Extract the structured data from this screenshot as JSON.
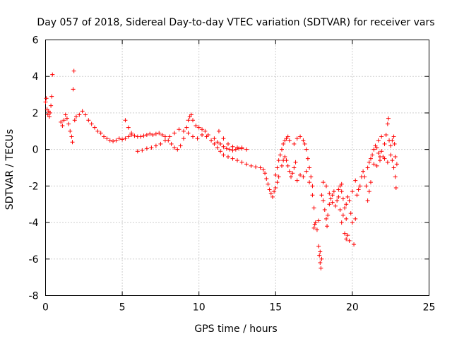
{
  "chart_data": {
    "type": "scatter",
    "title": "Day 057 of 2018, Sidereal Day-to-day VTEC variation (SDTVAR) for receiver vars",
    "xlabel": "GPS time / hours",
    "ylabel": "SDTVAR / TECUs",
    "xlim": [
      0,
      25
    ],
    "ylim": [
      -8,
      6
    ],
    "x_ticks": [
      0,
      5,
      10,
      15,
      20,
      25
    ],
    "y_ticks": [
      -8,
      -6,
      -4,
      -2,
      0,
      2,
      4,
      6
    ],
    "grid": true,
    "legend": "none",
    "marker": "+",
    "series": [
      {
        "name": "SDTVAR",
        "color": "#ff0000",
        "points": [
          [
            0.0,
            2.6
          ],
          [
            0.05,
            2.8
          ],
          [
            0.1,
            2.2
          ],
          [
            0.15,
            1.9
          ],
          [
            0.2,
            2.1
          ],
          [
            0.25,
            1.8
          ],
          [
            0.3,
            2.0
          ],
          [
            0.35,
            2.4
          ],
          [
            0.4,
            2.9
          ],
          [
            0.45,
            4.1
          ],
          [
            1.0,
            1.5
          ],
          [
            1.1,
            1.3
          ],
          [
            1.2,
            1.6
          ],
          [
            1.3,
            1.9
          ],
          [
            1.4,
            1.7
          ],
          [
            1.5,
            1.4
          ],
          [
            1.6,
            1.0
          ],
          [
            1.7,
            0.7
          ],
          [
            1.75,
            0.4
          ],
          [
            1.8,
            3.3
          ],
          [
            1.85,
            4.3
          ],
          [
            1.9,
            1.6
          ],
          [
            2.0,
            1.8
          ],
          [
            2.2,
            1.9
          ],
          [
            2.4,
            2.1
          ],
          [
            2.6,
            1.9
          ],
          [
            2.8,
            1.6
          ],
          [
            3.0,
            1.4
          ],
          [
            3.2,
            1.2
          ],
          [
            3.4,
            1.0
          ],
          [
            3.6,
            0.9
          ],
          [
            3.8,
            0.7
          ],
          [
            4.0,
            0.6
          ],
          [
            4.2,
            0.5
          ],
          [
            4.4,
            0.45
          ],
          [
            4.6,
            0.5
          ],
          [
            4.8,
            0.6
          ],
          [
            5.0,
            0.55
          ],
          [
            5.2,
            0.6
          ],
          [
            5.4,
            0.7
          ],
          [
            5.6,
            0.8
          ],
          [
            5.2,
            1.6
          ],
          [
            5.4,
            1.2
          ],
          [
            5.6,
            0.9
          ],
          [
            5.8,
            0.75
          ],
          [
            6.0,
            0.7
          ],
          [
            6.2,
            0.7
          ],
          [
            6.4,
            0.75
          ],
          [
            6.6,
            0.8
          ],
          [
            6.8,
            0.85
          ],
          [
            7.0,
            0.8
          ],
          [
            6.0,
            -0.1
          ],
          [
            6.3,
            -0.05
          ],
          [
            6.6,
            0.05
          ],
          [
            6.9,
            0.1
          ],
          [
            7.2,
            0.2
          ],
          [
            7.5,
            0.3
          ],
          [
            7.8,
            0.5
          ],
          [
            8.1,
            0.7
          ],
          [
            8.4,
            0.9
          ],
          [
            8.7,
            1.1
          ],
          [
            7.2,
            0.85
          ],
          [
            7.4,
            0.9
          ],
          [
            7.6,
            0.8
          ],
          [
            7.8,
            0.7
          ],
          [
            8.0,
            0.5
          ],
          [
            8.2,
            0.3
          ],
          [
            8.4,
            0.1
          ],
          [
            8.6,
            0.0
          ],
          [
            8.8,
            0.2
          ],
          [
            9.0,
            0.6
          ],
          [
            9.2,
            1.2
          ],
          [
            9.3,
            1.6
          ],
          [
            9.4,
            1.8
          ],
          [
            9.5,
            1.9
          ],
          [
            9.6,
            1.6
          ],
          [
            9.8,
            1.3
          ],
          [
            10.0,
            1.2
          ],
          [
            10.2,
            1.1
          ],
          [
            10.4,
            1.0
          ],
          [
            10.6,
            0.8
          ],
          [
            9.0,
            1.0
          ],
          [
            9.3,
            0.9
          ],
          [
            9.6,
            0.7
          ],
          [
            9.9,
            0.6
          ],
          [
            10.2,
            0.8
          ],
          [
            10.5,
            0.7
          ],
          [
            10.8,
            0.5
          ],
          [
            11.0,
            0.3
          ],
          [
            11.2,
            0.1
          ],
          [
            11.4,
            -0.1
          ],
          [
            11.0,
            0.6
          ],
          [
            11.2,
            0.4
          ],
          [
            11.4,
            0.3
          ],
          [
            11.6,
            0.15
          ],
          [
            11.8,
            0.05
          ],
          [
            12.0,
            0.0
          ],
          [
            12.2,
            -0.05
          ],
          [
            12.4,
            0.0
          ],
          [
            12.6,
            0.05
          ],
          [
            12.8,
            0.1
          ],
          [
            11.3,
            1.0
          ],
          [
            11.6,
            0.6
          ],
          [
            11.9,
            0.3
          ],
          [
            12.2,
            0.15
          ],
          [
            12.5,
            0.1
          ],
          [
            12.8,
            0.05
          ],
          [
            13.1,
            0.0
          ],
          [
            11.6,
            -0.3
          ],
          [
            11.9,
            -0.4
          ],
          [
            12.2,
            -0.5
          ],
          [
            12.5,
            -0.6
          ],
          [
            12.8,
            -0.7
          ],
          [
            13.1,
            -0.8
          ],
          [
            13.4,
            -0.9
          ],
          [
            13.7,
            -0.95
          ],
          [
            14.0,
            -1.0
          ],
          [
            14.2,
            -1.1
          ],
          [
            14.3,
            -1.3
          ],
          [
            14.4,
            -1.6
          ],
          [
            14.5,
            -1.9
          ],
          [
            14.6,
            -2.2
          ],
          [
            14.7,
            -2.4
          ],
          [
            14.8,
            -2.6
          ],
          [
            14.9,
            -2.3
          ],
          [
            15.0,
            -2.1
          ],
          [
            15.1,
            -1.8
          ],
          [
            15.2,
            -1.5
          ],
          [
            15.0,
            -1.4
          ],
          [
            15.1,
            -1.0
          ],
          [
            15.2,
            -0.6
          ],
          [
            15.3,
            -0.3
          ],
          [
            15.4,
            0.0
          ],
          [
            15.5,
            0.3
          ],
          [
            15.6,
            0.5
          ],
          [
            15.7,
            0.6
          ],
          [
            15.8,
            0.7
          ],
          [
            15.9,
            0.5
          ],
          [
            15.4,
            -0.9
          ],
          [
            15.5,
            -0.6
          ],
          [
            15.6,
            -0.4
          ],
          [
            15.7,
            -0.6
          ],
          [
            15.8,
            -0.9
          ],
          [
            15.9,
            -1.2
          ],
          [
            16.0,
            -1.5
          ],
          [
            16.1,
            -1.3
          ],
          [
            16.2,
            -1.0
          ],
          [
            16.3,
            -0.7
          ],
          [
            16.2,
            0.3
          ],
          [
            16.4,
            0.6
          ],
          [
            16.6,
            0.7
          ],
          [
            16.8,
            0.5
          ],
          [
            16.9,
            0.3
          ],
          [
            17.0,
            0.0
          ],
          [
            17.1,
            -0.5
          ],
          [
            17.2,
            -1.0
          ],
          [
            17.3,
            -1.5
          ],
          [
            17.4,
            -2.0
          ],
          [
            16.4,
            -1.7
          ],
          [
            16.6,
            -1.4
          ],
          [
            16.8,
            -1.5
          ],
          [
            17.0,
            -1.2
          ],
          [
            17.2,
            -1.8
          ],
          [
            17.4,
            -2.5
          ],
          [
            17.5,
            -3.2
          ],
          [
            17.6,
            -4.0
          ],
          [
            17.7,
            -4.4
          ],
          [
            17.8,
            -3.9
          ],
          [
            17.5,
            -4.3
          ],
          [
            17.55,
            -4.1
          ],
          [
            17.8,
            -5.3
          ],
          [
            17.85,
            -5.8
          ],
          [
            17.9,
            -6.2
          ],
          [
            17.95,
            -6.5
          ],
          [
            18.0,
            -6.0
          ],
          [
            17.9,
            -5.6
          ],
          [
            18.0,
            -2.5
          ],
          [
            18.1,
            -2.8
          ],
          [
            18.2,
            -3.3
          ],
          [
            18.3,
            -3.8
          ],
          [
            18.35,
            -4.2
          ],
          [
            18.4,
            -3.6
          ],
          [
            18.5,
            -3.0
          ],
          [
            18.6,
            -2.7
          ],
          [
            18.7,
            -2.5
          ],
          [
            18.8,
            -2.3
          ],
          [
            18.1,
            -1.8
          ],
          [
            18.3,
            -2.0
          ],
          [
            18.5,
            -2.4
          ],
          [
            18.7,
            -2.9
          ],
          [
            18.9,
            -3.1
          ],
          [
            19.0,
            -2.8
          ],
          [
            19.1,
            -2.2
          ],
          [
            19.2,
            -2.0
          ],
          [
            19.3,
            -2.3
          ],
          [
            19.4,
            -2.7
          ],
          [
            19.5,
            -3.2
          ],
          [
            19.6,
            -3.0
          ],
          [
            19.7,
            -2.6
          ],
          [
            19.8,
            -2.8
          ],
          [
            19.9,
            -3.5
          ],
          [
            20.0,
            -4.0
          ],
          [
            19.7,
            -4.7
          ],
          [
            19.8,
            -5.0
          ],
          [
            20.1,
            -5.2
          ],
          [
            20.2,
            -3.8
          ],
          [
            20.3,
            -2.5
          ],
          [
            20.4,
            -2.2
          ],
          [
            20.5,
            -2.0
          ],
          [
            20.6,
            -1.5
          ],
          [
            20.7,
            -1.2
          ],
          [
            20.8,
            -1.5
          ],
          [
            20.9,
            -2.0
          ],
          [
            21.0,
            -2.8
          ],
          [
            21.1,
            -2.3
          ],
          [
            21.2,
            -1.8
          ],
          [
            19.2,
            -3.3
          ],
          [
            19.4,
            -3.6
          ],
          [
            19.6,
            -3.8
          ],
          [
            19.3,
            -4.0
          ],
          [
            19.5,
            -4.6
          ],
          [
            19.6,
            -4.9
          ],
          [
            19.1,
            -2.6
          ],
          [
            19.3,
            -1.9
          ],
          [
            20.0,
            -2.3
          ],
          [
            20.2,
            -1.7
          ],
          [
            21.0,
            -1.0
          ],
          [
            21.1,
            -0.7
          ],
          [
            21.2,
            -0.5
          ],
          [
            21.3,
            -0.3
          ],
          [
            21.4,
            0.0
          ],
          [
            21.5,
            0.2
          ],
          [
            21.6,
            0.1
          ],
          [
            21.7,
            -0.2
          ],
          [
            21.8,
            -0.4
          ],
          [
            21.9,
            -0.1
          ],
          [
            21.4,
            -0.8
          ],
          [
            21.6,
            -0.9
          ],
          [
            21.8,
            -0.6
          ],
          [
            22.0,
            -0.4
          ],
          [
            22.1,
            0.3
          ],
          [
            22.2,
            0.8
          ],
          [
            22.3,
            1.4
          ],
          [
            22.35,
            1.7
          ],
          [
            22.4,
            0.5
          ],
          [
            22.5,
            0.2
          ],
          [
            21.7,
            0.5
          ],
          [
            21.9,
            0.7
          ],
          [
            22.1,
            -0.5
          ],
          [
            22.3,
            -0.7
          ],
          [
            22.5,
            -0.3
          ],
          [
            22.6,
            -0.6
          ],
          [
            22.7,
            -1.0
          ],
          [
            22.8,
            -1.5
          ],
          [
            22.85,
            -2.1
          ],
          [
            22.75,
            0.3
          ],
          [
            22.6,
            0.5
          ],
          [
            22.7,
            0.7
          ],
          [
            22.8,
            -0.4
          ],
          [
            22.9,
            -0.8
          ]
        ]
      }
    ]
  }
}
